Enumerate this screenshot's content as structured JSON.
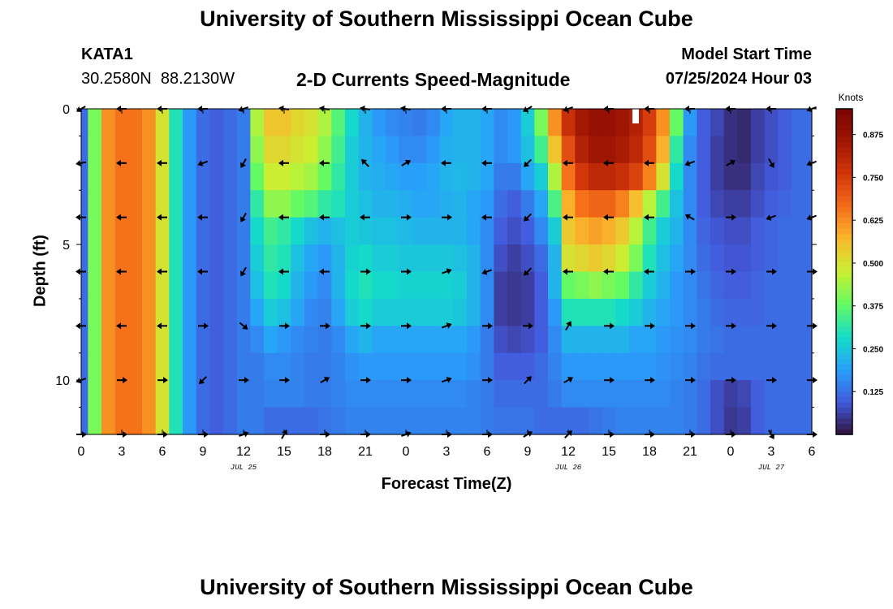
{
  "header": {
    "title": "University of Southern Mississippi Ocean Cube",
    "station": "KATA1",
    "coords": "30.2580N  88.2130W",
    "subtitle": "2-D Currents Speed-Magnitude",
    "model_start_label": "Model Start Time",
    "model_start_value": "07/25/2024 Hour 03"
  },
  "footer": {
    "title": "University of Southern Mississippi Ocean Cube"
  },
  "chart_data": {
    "type": "heatmap",
    "title": "2-D Currents Speed-Magnitude",
    "xlabel": "Forecast Time(Z)",
    "ylabel": "Depth (ft)",
    "x_hours_range": [
      0,
      54
    ],
    "ylim": [
      0,
      12
    ],
    "x_ticks": [
      "0",
      "3",
      "6",
      "9",
      "12",
      "15",
      "18",
      "21",
      "0",
      "3",
      "6",
      "9",
      "12",
      "15",
      "18",
      "21",
      "0",
      "3",
      "6"
    ],
    "y_ticks": [
      "0",
      "5",
      "10"
    ],
    "date_labels": [
      {
        "hour": 12,
        "text": "JUL 25"
      },
      {
        "hour": 36,
        "text": "JUL 26"
      },
      {
        "hour": 51,
        "text": "JUL 27"
      }
    ],
    "colorbar": {
      "label": "Knots",
      "range": [
        0,
        0.95
      ],
      "ticks": [
        "0.125",
        "0.250",
        "0.375",
        "0.500",
        "0.625",
        "0.750",
        "0.875"
      ],
      "tick_values": [
        0.125,
        0.25,
        0.375,
        0.5,
        0.625,
        0.75,
        0.875
      ]
    },
    "depths_ft": [
      0.5,
      1.5,
      2.5,
      3.5,
      4.5,
      5.5,
      6.5,
      7.5,
      8.5,
      9.5,
      10.5,
      11.5
    ],
    "profile_hours": [
      0,
      1,
      2,
      3,
      4,
      5,
      6,
      7,
      8,
      9,
      10,
      11,
      12,
      13,
      14,
      15,
      16,
      17,
      18,
      19,
      20,
      21,
      22,
      23,
      24,
      25,
      26,
      27,
      28,
      29,
      30,
      31,
      32,
      33,
      34,
      35,
      36,
      37,
      38,
      39,
      40,
      41,
      42,
      43,
      44,
      45,
      46,
      47,
      48,
      49,
      50,
      51,
      52,
      53,
      54
    ],
    "speed_knots": [
      [
        0.12,
        0.4,
        0.62,
        0.66,
        0.66,
        0.62,
        0.5,
        0.3,
        0.18,
        0.12,
        0.1,
        0.12,
        0.14,
        0.45,
        0.55,
        0.55,
        0.52,
        0.5,
        0.45,
        0.36,
        0.28,
        0.22,
        0.18,
        0.16,
        0.15,
        0.14,
        0.16,
        0.2,
        0.22,
        0.22,
        0.2,
        0.16,
        0.18,
        0.26,
        0.4,
        0.62,
        0.78,
        0.85,
        0.88,
        0.88,
        0.86,
        0.82,
        0.75,
        0.62,
        0.38,
        0.18,
        0.1,
        0.07,
        0.04,
        0.03,
        0.06,
        0.08,
        0.1,
        0.12,
        0.12
      ],
      [
        0.12,
        0.4,
        0.62,
        0.66,
        0.66,
        0.62,
        0.5,
        0.3,
        0.18,
        0.12,
        0.1,
        0.12,
        0.14,
        0.42,
        0.52,
        0.52,
        0.5,
        0.48,
        0.42,
        0.34,
        0.26,
        0.22,
        0.2,
        0.18,
        0.16,
        0.16,
        0.18,
        0.21,
        0.22,
        0.22,
        0.2,
        0.16,
        0.18,
        0.24,
        0.34,
        0.55,
        0.72,
        0.82,
        0.86,
        0.86,
        0.84,
        0.8,
        0.72,
        0.58,
        0.32,
        0.16,
        0.1,
        0.06,
        0.04,
        0.03,
        0.06,
        0.08,
        0.1,
        0.12,
        0.12
      ],
      [
        0.12,
        0.4,
        0.62,
        0.66,
        0.66,
        0.62,
        0.5,
        0.3,
        0.18,
        0.12,
        0.1,
        0.12,
        0.14,
        0.38,
        0.48,
        0.48,
        0.46,
        0.44,
        0.38,
        0.32,
        0.26,
        0.22,
        0.21,
        0.2,
        0.19,
        0.19,
        0.2,
        0.22,
        0.23,
        0.22,
        0.2,
        0.14,
        0.14,
        0.2,
        0.26,
        0.45,
        0.66,
        0.76,
        0.8,
        0.8,
        0.78,
        0.74,
        0.64,
        0.5,
        0.28,
        0.16,
        0.1,
        0.06,
        0.04,
        0.04,
        0.07,
        0.09,
        0.1,
        0.12,
        0.12
      ],
      [
        0.12,
        0.4,
        0.62,
        0.66,
        0.66,
        0.62,
        0.5,
        0.3,
        0.18,
        0.12,
        0.1,
        0.12,
        0.14,
        0.32,
        0.42,
        0.42,
        0.38,
        0.36,
        0.32,
        0.3,
        0.26,
        0.24,
        0.22,
        0.22,
        0.21,
        0.2,
        0.2,
        0.21,
        0.22,
        0.2,
        0.18,
        0.12,
        0.1,
        0.14,
        0.2,
        0.35,
        0.58,
        0.66,
        0.68,
        0.68,
        0.64,
        0.56,
        0.46,
        0.34,
        0.24,
        0.16,
        0.1,
        0.07,
        0.06,
        0.06,
        0.08,
        0.1,
        0.11,
        0.12,
        0.12
      ],
      [
        0.12,
        0.4,
        0.62,
        0.66,
        0.66,
        0.62,
        0.5,
        0.3,
        0.18,
        0.12,
        0.1,
        0.12,
        0.14,
        0.28,
        0.34,
        0.32,
        0.28,
        0.24,
        0.22,
        0.24,
        0.26,
        0.25,
        0.24,
        0.24,
        0.23,
        0.22,
        0.22,
        0.22,
        0.22,
        0.2,
        0.16,
        0.1,
        0.08,
        0.1,
        0.16,
        0.26,
        0.54,
        0.58,
        0.6,
        0.58,
        0.54,
        0.46,
        0.34,
        0.26,
        0.22,
        0.16,
        0.11,
        0.09,
        0.08,
        0.08,
        0.1,
        0.11,
        0.12,
        0.12,
        0.12
      ],
      [
        0.12,
        0.4,
        0.62,
        0.66,
        0.66,
        0.62,
        0.5,
        0.3,
        0.18,
        0.12,
        0.1,
        0.12,
        0.14,
        0.26,
        0.32,
        0.3,
        0.24,
        0.2,
        0.18,
        0.22,
        0.27,
        0.28,
        0.26,
        0.26,
        0.25,
        0.25,
        0.25,
        0.25,
        0.24,
        0.22,
        0.16,
        0.08,
        0.06,
        0.08,
        0.12,
        0.22,
        0.5,
        0.52,
        0.54,
        0.52,
        0.48,
        0.4,
        0.3,
        0.24,
        0.2,
        0.16,
        0.12,
        0.1,
        0.09,
        0.09,
        0.1,
        0.11,
        0.12,
        0.12,
        0.12
      ],
      [
        0.12,
        0.4,
        0.62,
        0.66,
        0.66,
        0.62,
        0.5,
        0.3,
        0.18,
        0.12,
        0.1,
        0.12,
        0.14,
        0.24,
        0.3,
        0.28,
        0.22,
        0.18,
        0.16,
        0.22,
        0.28,
        0.3,
        0.28,
        0.28,
        0.27,
        0.27,
        0.27,
        0.27,
        0.26,
        0.22,
        0.16,
        0.06,
        0.05,
        0.06,
        0.1,
        0.22,
        0.38,
        0.4,
        0.42,
        0.4,
        0.38,
        0.32,
        0.26,
        0.22,
        0.18,
        0.16,
        0.13,
        0.11,
        0.1,
        0.1,
        0.11,
        0.12,
        0.12,
        0.12,
        0.12
      ],
      [
        0.12,
        0.4,
        0.62,
        0.66,
        0.66,
        0.62,
        0.5,
        0.3,
        0.18,
        0.12,
        0.1,
        0.12,
        0.14,
        0.2,
        0.26,
        0.24,
        0.2,
        0.16,
        0.15,
        0.2,
        0.26,
        0.28,
        0.26,
        0.26,
        0.26,
        0.26,
        0.26,
        0.26,
        0.25,
        0.22,
        0.16,
        0.06,
        0.05,
        0.06,
        0.1,
        0.18,
        0.3,
        0.3,
        0.3,
        0.3,
        0.28,
        0.26,
        0.22,
        0.2,
        0.18,
        0.16,
        0.14,
        0.12,
        0.11,
        0.11,
        0.11,
        0.12,
        0.12,
        0.12,
        0.12
      ],
      [
        0.12,
        0.4,
        0.62,
        0.66,
        0.66,
        0.62,
        0.5,
        0.3,
        0.18,
        0.12,
        0.1,
        0.12,
        0.14,
        0.16,
        0.2,
        0.18,
        0.16,
        0.15,
        0.14,
        0.16,
        0.2,
        0.22,
        0.2,
        0.2,
        0.2,
        0.2,
        0.2,
        0.2,
        0.2,
        0.18,
        0.14,
        0.08,
        0.07,
        0.08,
        0.1,
        0.16,
        0.22,
        0.22,
        0.22,
        0.22,
        0.22,
        0.2,
        0.2,
        0.18,
        0.17,
        0.16,
        0.14,
        0.13,
        0.12,
        0.12,
        0.12,
        0.12,
        0.12,
        0.12,
        0.12
      ],
      [
        0.12,
        0.4,
        0.62,
        0.66,
        0.66,
        0.62,
        0.5,
        0.3,
        0.18,
        0.12,
        0.1,
        0.12,
        0.14,
        0.14,
        0.16,
        0.16,
        0.15,
        0.14,
        0.14,
        0.15,
        0.17,
        0.18,
        0.18,
        0.18,
        0.18,
        0.18,
        0.18,
        0.18,
        0.18,
        0.17,
        0.14,
        0.1,
        0.1,
        0.1,
        0.12,
        0.15,
        0.18,
        0.18,
        0.18,
        0.18,
        0.18,
        0.18,
        0.18,
        0.17,
        0.16,
        0.15,
        0.13,
        0.12,
        0.12,
        0.12,
        0.12,
        0.12,
        0.12,
        0.12,
        0.12
      ],
      [
        0.12,
        0.4,
        0.62,
        0.66,
        0.66,
        0.62,
        0.5,
        0.3,
        0.18,
        0.12,
        0.1,
        0.12,
        0.14,
        0.14,
        0.15,
        0.15,
        0.15,
        0.14,
        0.14,
        0.15,
        0.16,
        0.16,
        0.16,
        0.16,
        0.16,
        0.16,
        0.16,
        0.16,
        0.16,
        0.15,
        0.14,
        0.12,
        0.12,
        0.12,
        0.12,
        0.14,
        0.16,
        0.16,
        0.16,
        0.16,
        0.16,
        0.16,
        0.16,
        0.16,
        0.15,
        0.14,
        0.12,
        0.08,
        0.06,
        0.07,
        0.1,
        0.12,
        0.12,
        0.12,
        0.12
      ],
      [
        0.12,
        0.4,
        0.62,
        0.66,
        0.66,
        0.62,
        0.5,
        0.3,
        0.18,
        0.12,
        0.1,
        0.12,
        0.14,
        0.14,
        0.12,
        0.12,
        0.12,
        0.12,
        0.13,
        0.14,
        0.15,
        0.15,
        0.15,
        0.15,
        0.15,
        0.15,
        0.15,
        0.15,
        0.15,
        0.15,
        0.14,
        0.13,
        0.13,
        0.13,
        0.12,
        0.12,
        0.12,
        0.12,
        0.13,
        0.14,
        0.15,
        0.15,
        0.15,
        0.15,
        0.15,
        0.14,
        0.12,
        0.08,
        0.05,
        0.06,
        0.1,
        0.12,
        0.12,
        0.12,
        0.12
      ]
    ],
    "vectors": {
      "hours": [
        0,
        3,
        6,
        9,
        12,
        15,
        18,
        21,
        24,
        27,
        30,
        33,
        36,
        39,
        42,
        45,
        48,
        51,
        54
      ],
      "depths_ft": [
        0,
        2,
        4,
        6,
        8,
        10,
        12
      ],
      "directions_deg": [
        [
          210,
          180,
          180,
          180,
          200,
          170,
          170,
          170,
          170,
          180,
          180,
          210,
          200,
          180,
          180,
          180,
          180,
          180,
          200
        ],
        [
          190,
          180,
          180,
          200,
          240,
          180,
          180,
          135,
          30,
          180,
          180,
          225,
          180,
          180,
          180,
          200,
          30,
          300,
          200
        ],
        [
          180,
          180,
          180,
          180,
          240,
          180,
          180,
          180,
          0,
          0,
          180,
          225,
          180,
          180,
          180,
          150,
          0,
          200,
          200
        ],
        [
          180,
          180,
          180,
          180,
          240,
          180,
          180,
          0,
          0,
          20,
          200,
          225,
          180,
          180,
          180,
          0,
          0,
          0,
          0
        ],
        [
          180,
          180,
          180,
          0,
          320,
          0,
          0,
          0,
          0,
          20,
          0,
          0,
          60,
          0,
          0,
          0,
          0,
          0,
          0
        ],
        [
          200,
          0,
          0,
          225,
          0,
          0,
          30,
          0,
          0,
          20,
          0,
          45,
          30,
          0,
          0,
          0,
          0,
          0,
          0
        ],
        [
          0,
          0,
          0,
          0,
          20,
          60,
          0,
          0,
          20,
          0,
          0,
          30,
          45,
          0,
          0,
          0,
          0,
          300,
          0
        ]
      ]
    }
  }
}
